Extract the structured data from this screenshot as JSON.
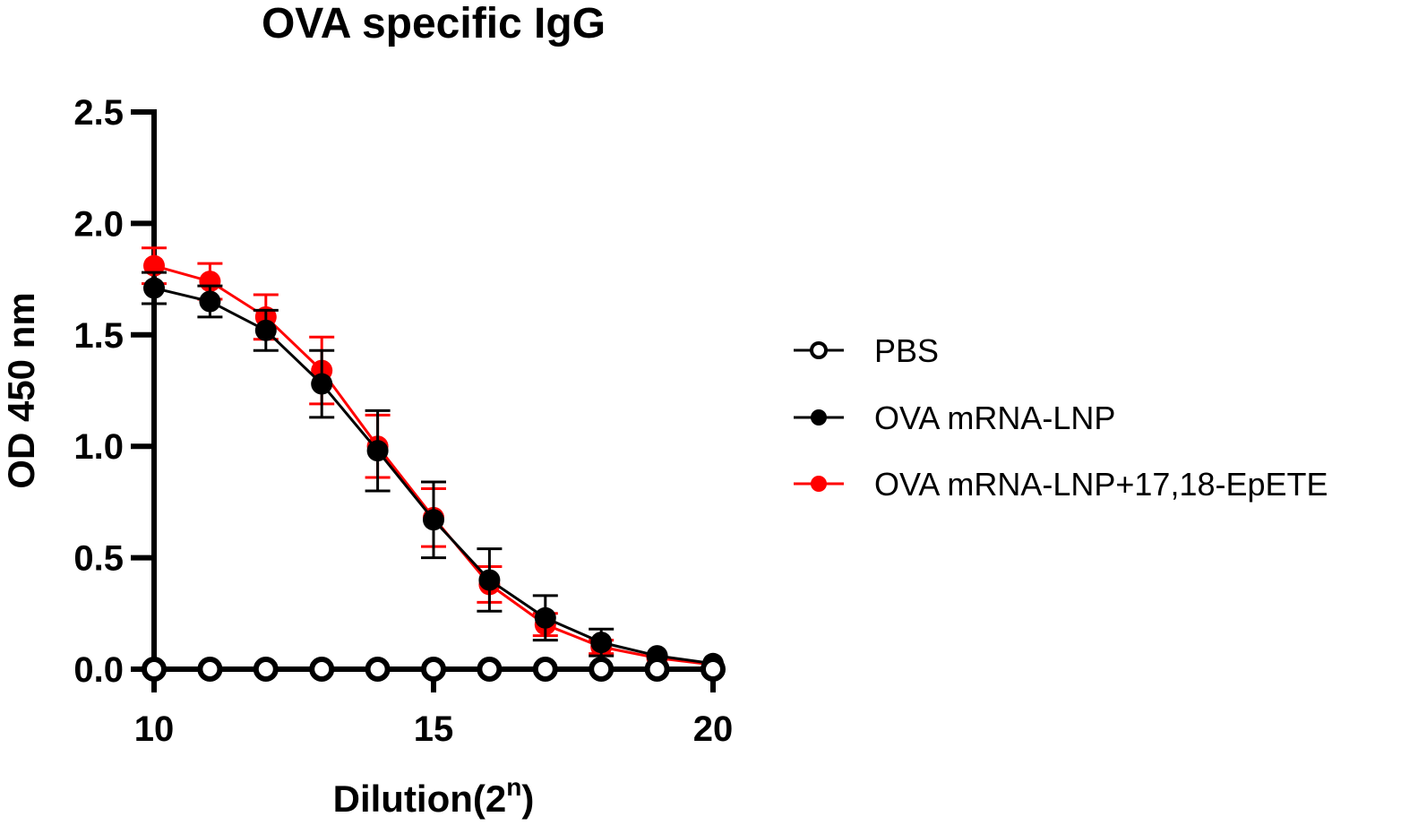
{
  "chart_data": {
    "type": "line",
    "title": "OVA specific IgG",
    "xlabel": "Dilution(2",
    "xlabel_superscript": "n",
    "xlabel_suffix": ")",
    "ylabel": "OD 450 nm",
    "xlim": [
      10,
      20
    ],
    "ylim": [
      0,
      2.5
    ],
    "x_ticks": [
      10,
      15,
      20
    ],
    "x_tick_labels": [
      "10",
      "15",
      "20"
    ],
    "x_minor_ticks": [
      10,
      15,
      20
    ],
    "y_ticks": [
      0,
      0.5,
      1.0,
      1.5,
      2.0,
      2.5
    ],
    "y_tick_labels": [
      "0.0",
      "0.5",
      "1.0",
      "1.5",
      "2.0",
      "2.5"
    ],
    "grid": false,
    "legend_position": "right",
    "x": [
      10,
      11,
      12,
      13,
      14,
      15,
      16,
      17,
      18,
      19,
      20
    ],
    "series": [
      {
        "name": "PBS",
        "color": "#000000",
        "marker": "open-circle",
        "values": [
          0.0,
          0.0,
          0.0,
          0.0,
          0.0,
          0.0,
          0.0,
          0.0,
          0.0,
          0.0,
          0.0
        ],
        "error": [
          0,
          0,
          0,
          0,
          0,
          0,
          0,
          0,
          0,
          0,
          0
        ]
      },
      {
        "name": "OVA mRNA-LNP+17,18-EpETE",
        "color": "#ff0000",
        "marker": "filled-circle",
        "values": [
          1.81,
          1.74,
          1.58,
          1.34,
          1.0,
          0.68,
          0.38,
          0.2,
          0.1,
          0.05,
          0.02
        ],
        "error": [
          0.08,
          0.08,
          0.1,
          0.15,
          0.14,
          0.13,
          0.08,
          0.05,
          0.03,
          0.0,
          0.0
        ]
      },
      {
        "name": "OVA mRNA-LNP",
        "color": "#000000",
        "marker": "filled-circle",
        "values": [
          1.71,
          1.65,
          1.52,
          1.28,
          0.98,
          0.67,
          0.4,
          0.23,
          0.12,
          0.06,
          0.025
        ],
        "error": [
          0.07,
          0.07,
          0.09,
          0.15,
          0.18,
          0.17,
          0.14,
          0.1,
          0.06,
          0.0,
          0.0
        ]
      }
    ],
    "legend": [
      {
        "label": "PBS",
        "color": "#000000",
        "marker": "open-circle"
      },
      {
        "label": "OVA mRNA-LNP",
        "color": "#000000",
        "marker": "filled-circle"
      },
      {
        "label": "OVA mRNA-LNP+17,18-EpETE",
        "color": "#ff0000",
        "marker": "filled-circle"
      }
    ]
  }
}
